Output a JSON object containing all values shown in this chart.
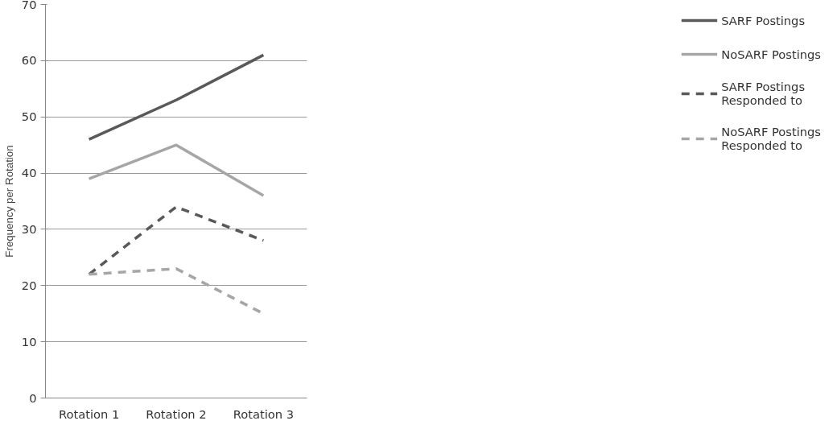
{
  "chart_data": {
    "type": "line",
    "ylabel": "Frequency per Rotation",
    "categories": [
      "Rotation 1",
      "Rotation 2",
      "Rotation 3"
    ],
    "series": [
      {
        "name": "SARF Postings",
        "color": "#595959",
        "line_style": "solid",
        "values": [
          46,
          53,
          61
        ]
      },
      {
        "name": "NoSARF Postings",
        "color": "#a6a6a6",
        "line_style": "solid",
        "values": [
          39,
          45,
          36
        ]
      },
      {
        "name": "SARF Postings Responded to",
        "color": "#595959",
        "line_style": "dashed",
        "values": [
          22,
          34,
          28
        ]
      },
      {
        "name": "NoSARF Postings Responded to",
        "color": "#a6a6a6",
        "line_style": "dashed",
        "values": [
          22,
          23,
          15
        ]
      }
    ],
    "ylim": [
      0,
      70
    ],
    "yticks": [
      0,
      10,
      20,
      30,
      40,
      50,
      60,
      70
    ],
    "grid": "y",
    "legend": "right",
    "marker": "none"
  }
}
